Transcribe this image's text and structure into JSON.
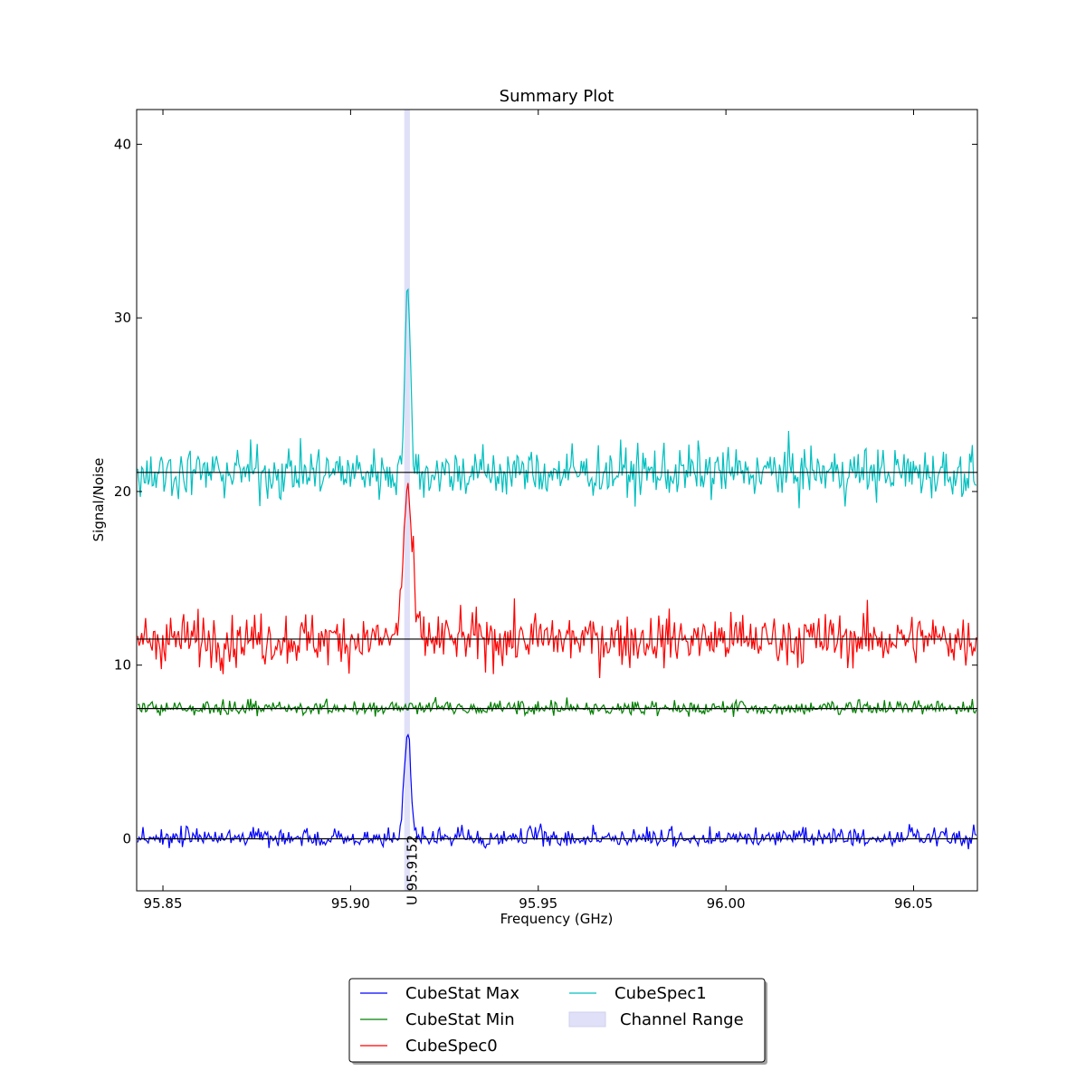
{
  "chart_data": {
    "type": "line",
    "title": "Summary Plot",
    "xlabel": "Frequency (GHz)",
    "ylabel": "Signal/Noise",
    "xlim": [
      95.843,
      96.067
    ],
    "ylim": [
      -3,
      42
    ],
    "xticks": [
      95.85,
      95.9,
      95.95,
      96.0,
      96.05
    ],
    "xtick_labels": [
      "95.85",
      "95.90",
      "95.95",
      "96.00",
      "96.05"
    ],
    "yticks": [
      0,
      10,
      20,
      30,
      40
    ],
    "ytick_labels": [
      "0",
      "10",
      "20",
      "30",
      "40"
    ],
    "grid": false,
    "legend_placement": "bottom-center (below plot)",
    "channel_range": {
      "label": "Channel Range",
      "x_start": 95.9143,
      "x_end": 95.9158,
      "color": "#e0e0f8"
    },
    "annotation": {
      "text": "U 95.9152",
      "x": 95.9152
    },
    "baselines": [
      0.0,
      7.5,
      11.5,
      21.1
    ],
    "series": [
      {
        "name": "CubeStat Max",
        "color": "#0000ff",
        "baseline": 0.0,
        "noise": 0.45,
        "peak": {
          "x": 95.9152,
          "height": 6.0,
          "width": 0.0009
        }
      },
      {
        "name": "CubeStat Min",
        "color": "#008000",
        "baseline": 7.5,
        "noise": 0.35,
        "peak": null
      },
      {
        "name": "CubeSpec0",
        "color": "#ff0000",
        "baseline": 11.5,
        "noise": 1.05,
        "peak": {
          "x": 95.9152,
          "height": 8.5,
          "width": 0.0012
        }
      },
      {
        "name": "CubeSpec1",
        "color": "#00bfbf",
        "baseline": 21.1,
        "noise": 1.05,
        "peak": {
          "x": 95.9152,
          "height": 9.8,
          "width": 0.0008
        }
      }
    ]
  }
}
